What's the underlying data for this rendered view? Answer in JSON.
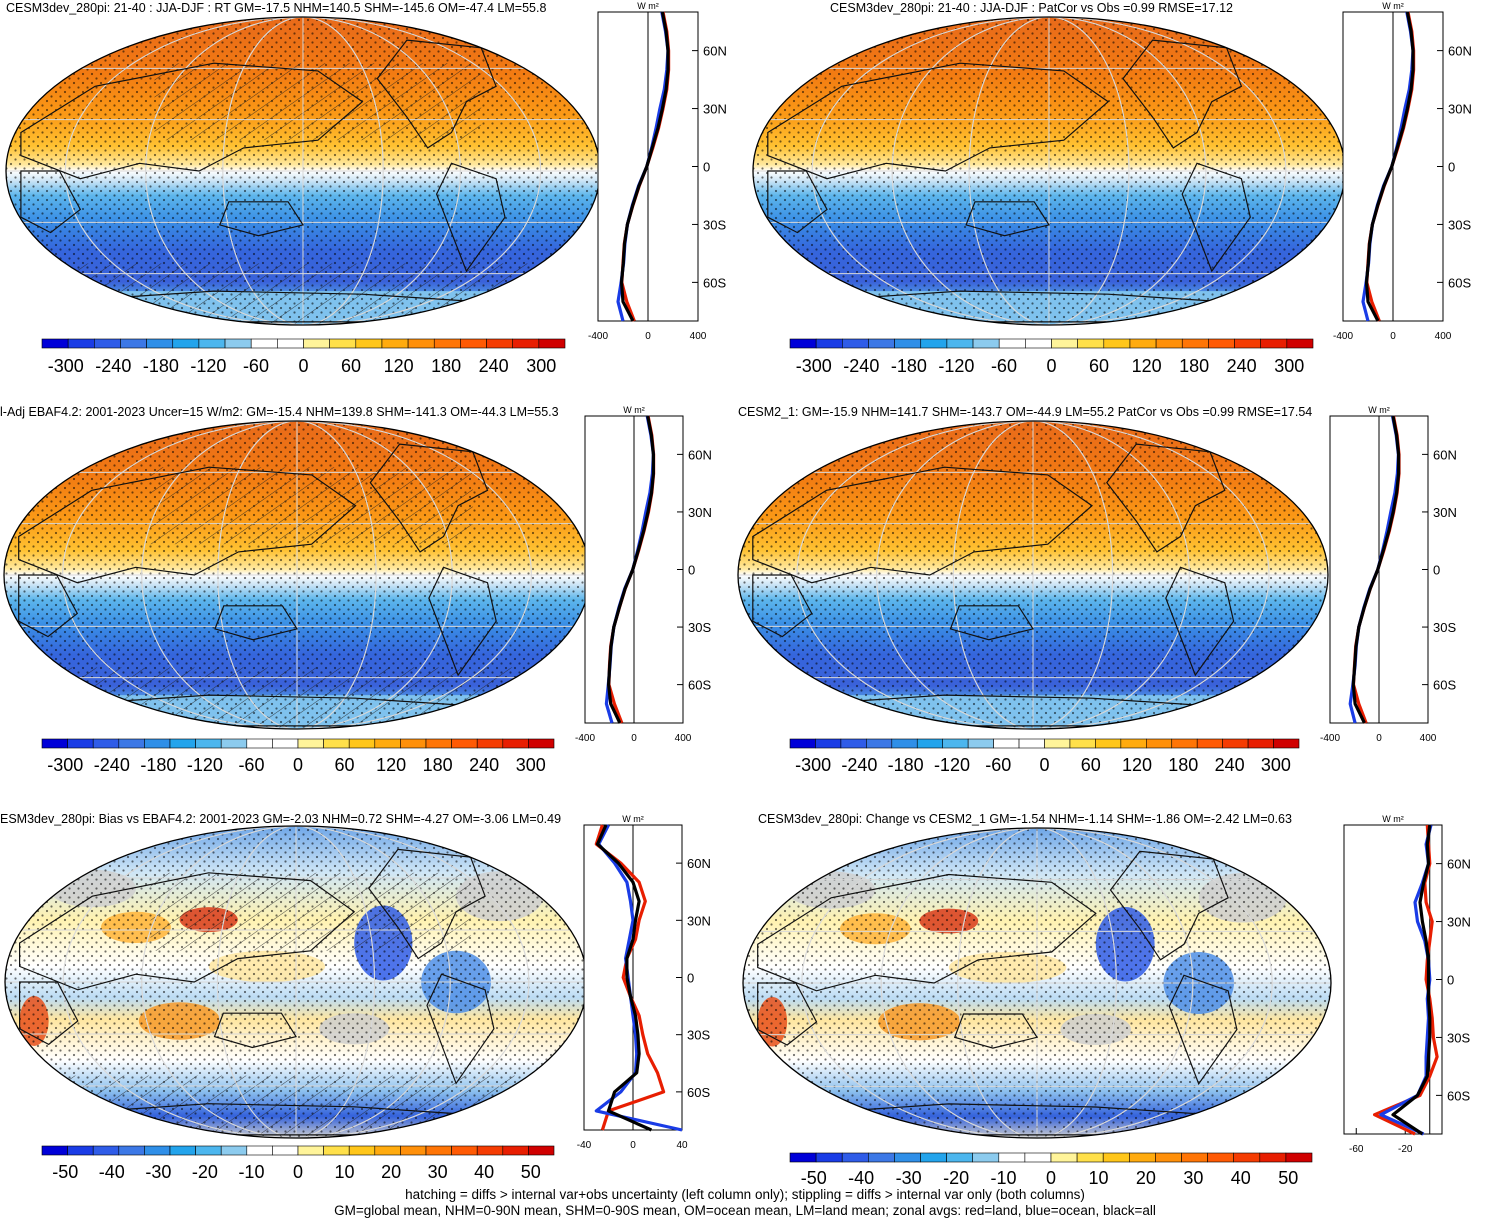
{
  "chart_data": [
    {
      "type": "heatmap",
      "title": "CESM3dev_280pi: 21-40 : JJA-DJF : RT GM=-17.5 NHM=140.5 SHM=-145.6 OM=-47.4 LM=55.8",
      "colorbar_ticks": [
        "-300",
        "-240",
        "-180",
        "-120",
        "-60",
        "0",
        "60",
        "120",
        "180",
        "240",
        "300"
      ],
      "colorbar_range": [
        -330,
        330
      ],
      "hatching": true,
      "zonal": {
        "unit": "W m²",
        "xticks": [
          "-400",
          "0",
          "400"
        ],
        "xlim": [
          -400,
          400
        ],
        "yticks": [
          "60N",
          "30N",
          "0",
          "30S",
          "60S"
        ],
        "lat": [
          80,
          70,
          60,
          50,
          40,
          30,
          20,
          10,
          0,
          -10,
          -20,
          -30,
          -40,
          -50,
          -60,
          -70,
          -80
        ],
        "series": [
          {
            "values": [
              120,
              150,
              165,
              165,
              150,
              120,
              85,
              40,
              -10,
              -70,
              -120,
              -165,
              -190,
              -200,
              -210,
              -170,
              -110
            ]
          },
          {
            "values": [
              110,
              140,
              160,
              150,
              130,
              95,
              65,
              30,
              -10,
              -75,
              -125,
              -165,
              -185,
              -195,
              -215,
              -240,
              -200
            ]
          },
          {
            "values": [
              115,
              145,
              160,
              160,
              145,
              115,
              80,
              35,
              -10,
              -72,
              -122,
              -165,
              -188,
              -198,
              -212,
              -200,
              -120
            ]
          }
        ]
      }
    },
    {
      "type": "heatmap",
      "title": "CESM3dev_280pi: 21-40 : JJA-DJF : PatCor vs Obs =0.99 RMSE=17.12",
      "colorbar_ticks": [
        "-300",
        "-240",
        "-180",
        "-120",
        "-60",
        "0",
        "60",
        "120",
        "180",
        "240",
        "300"
      ],
      "colorbar_range": [
        -330,
        330
      ],
      "hatching": false,
      "zonal": {
        "unit": "W m²",
        "xticks": [
          "-400",
          "0",
          "400"
        ],
        "xlim": [
          -400,
          400
        ],
        "yticks": [
          "60N",
          "30N",
          "0",
          "30S",
          "60S"
        ],
        "lat": [
          80,
          70,
          60,
          50,
          40,
          30,
          20,
          10,
          0,
          -10,
          -20,
          -30,
          -40,
          -50,
          -60,
          -70,
          -80
        ],
        "series": [
          {
            "values": [
              120,
              150,
              165,
              165,
              150,
              120,
              85,
              40,
              -10,
              -70,
              -120,
              -165,
              -190,
              -200,
              -210,
              -170,
              -110
            ]
          },
          {
            "values": [
              110,
              140,
              160,
              150,
              130,
              95,
              65,
              30,
              -10,
              -75,
              -125,
              -165,
              -185,
              -195,
              -215,
              -240,
              -200
            ]
          },
          {
            "values": [
              115,
              145,
              160,
              160,
              145,
              115,
              80,
              35,
              -10,
              -72,
              -122,
              -165,
              -188,
              -198,
              -212,
              -200,
              -120
            ]
          }
        ]
      }
    },
    {
      "type": "heatmap",
      "title": "l-Adj EBAF4.2: 2001-2023 Uncer=15 W/m2: GM=-15.4 NHM=139.8 SHM=-141.3 OM=-44.3 LM=55.3",
      "colorbar_ticks": [
        "-300",
        "-240",
        "-180",
        "-120",
        "-60",
        "0",
        "60",
        "120",
        "180",
        "240",
        "300"
      ],
      "colorbar_range": [
        -330,
        330
      ],
      "hatching": true,
      "zonal": {
        "unit": "W m²",
        "xticks": [
          "-400",
          "0",
          "400"
        ],
        "xlim": [
          -400,
          400
        ],
        "yticks": [
          "60N",
          "30N",
          "0",
          "30S",
          "60S"
        ],
        "lat": [
          80,
          70,
          60,
          50,
          40,
          30,
          20,
          10,
          0,
          -10,
          -20,
          -30,
          -40,
          -50,
          -60,
          -70,
          -80
        ],
        "series": [
          {
            "values": [
              115,
              145,
              160,
              160,
              145,
              118,
              82,
              38,
              -10,
              -72,
              -120,
              -165,
              -190,
              -200,
              -205,
              -160,
              -100
            ]
          },
          {
            "values": [
              108,
              138,
              158,
              150,
              130,
              96,
              66,
              30,
              -10,
              -76,
              -124,
              -165,
              -186,
              -196,
              -210,
              -225,
              -180
            ]
          },
          {
            "values": [
              112,
              142,
              158,
              158,
              143,
              114,
              78,
              35,
              -10,
              -73,
              -121,
              -165,
              -188,
              -198,
              -207,
              -190,
              -115
            ]
          }
        ]
      }
    },
    {
      "type": "heatmap",
      "title": "CESM2_1: GM=-15.9 NHM=141.7 SHM=-143.7 OM=-44.9 LM=55.2 PatCor vs Obs =0.99 RMSE=17.54",
      "colorbar_ticks": [
        "-300",
        "-240",
        "-180",
        "-120",
        "-60",
        "0",
        "60",
        "120",
        "180",
        "240",
        "300"
      ],
      "colorbar_range": [
        -330,
        330
      ],
      "hatching": false,
      "zonal": {
        "unit": "W m²",
        "xticks": [
          "-400",
          "0",
          "400"
        ],
        "xlim": [
          -400,
          400
        ],
        "yticks": [
          "60N",
          "30N",
          "0",
          "30S",
          "60S"
        ],
        "lat": [
          80,
          70,
          60,
          50,
          40,
          30,
          20,
          10,
          0,
          -10,
          -20,
          -30,
          -40,
          -50,
          -60,
          -70,
          -80
        ],
        "series": [
          {
            "values": [
              118,
              148,
              163,
              163,
              148,
              120,
              84,
              40,
              -10,
              -71,
              -121,
              -165,
              -190,
              -200,
              -208,
              -165,
              -105
            ]
          },
          {
            "values": [
              110,
              140,
              158,
              150,
              130,
              96,
              65,
              30,
              -10,
              -75,
              -124,
              -165,
              -185,
              -195,
              -213,
              -235,
              -195
            ]
          },
          {
            "values": [
              114,
              144,
              160,
              160,
              144,
              116,
              80,
              36,
              -10,
              -72,
              -122,
              -165,
              -188,
              -198,
              -210,
              -195,
              -118
            ]
          }
        ]
      }
    },
    {
      "type": "heatmap",
      "title": "ESM3dev_280pi: Bias vs EBAF4.2: 2001-2023 GM=-2.03 NHM=0.72 SHM=-4.27 OM=-3.06 LM=0.49",
      "colorbar_ticks": [
        "-50",
        "-40",
        "-30",
        "-20",
        "-10",
        "0",
        "10",
        "20",
        "30",
        "40",
        "50"
      ],
      "colorbar_range": [
        -55,
        55
      ],
      "hatching": true,
      "zonal": {
        "unit": "W m²",
        "xticks": [
          "-40",
          "0",
          "40"
        ],
        "xlim": [
          -40,
          40
        ],
        "yticks": [
          "60N",
          "30N",
          "0",
          "30S",
          "60S"
        ],
        "lat": [
          80,
          70,
          60,
          50,
          40,
          30,
          20,
          10,
          0,
          -10,
          -20,
          -30,
          -40,
          -50,
          -60,
          -70,
          -80
        ],
        "series": [
          {
            "values": [
              -25,
              -30,
              -10,
              5,
              10,
              5,
              2,
              -5,
              -8,
              -2,
              5,
              8,
              12,
              20,
              25,
              -20,
              -25
            ]
          },
          {
            "values": [
              -20,
              -28,
              -15,
              -5,
              -2,
              0,
              -3,
              -6,
              -4,
              -2,
              0,
              2,
              3,
              2,
              -10,
              -30,
              40
            ]
          },
          {
            "values": [
              -22,
              -29,
              -12,
              0,
              5,
              2,
              0,
              -5,
              -5,
              -2,
              2,
              4,
              5,
              3,
              -15,
              -20,
              15
            ]
          }
        ]
      }
    },
    {
      "type": "heatmap",
      "title": "CESM3dev_280pi: Change vs CESM2_1 GM=-1.54 NHM=-1.14 SHM=-1.86 OM=-2.42 LM=0.63",
      "colorbar_ticks": [
        "-50",
        "-40",
        "-30",
        "-20",
        "-10",
        "0",
        "10",
        "20",
        "30",
        "40",
        "50"
      ],
      "colorbar_range": [
        -55,
        55
      ],
      "hatching": false,
      "zonal": {
        "unit": "W m²",
        "xticks": [
          "-60",
          "-20"
        ],
        "xlim": [
          -70,
          10
        ],
        "yticks": [
          "60N",
          "30N",
          "0",
          "30S",
          "60S"
        ],
        "lat": [
          80,
          70,
          60,
          50,
          40,
          30,
          20,
          10,
          0,
          -10,
          -20,
          -30,
          -40,
          -50,
          -60,
          -70,
          -80
        ],
        "series": [
          {
            "values": [
              -2,
              -1,
              0,
              -4,
              -3,
              2,
              0,
              -2,
              -3,
              0,
              2,
              3,
              6,
              0,
              -8,
              -45,
              -12
            ]
          },
          {
            "values": [
              1,
              -3,
              -1,
              -6,
              -12,
              -10,
              -4,
              -1,
              0,
              -2,
              -1,
              -2,
              -3,
              -3,
              -10,
              -40,
              -5
            ]
          },
          {
            "values": [
              0,
              -2,
              -1,
              -5,
              -8,
              -6,
              -3,
              -1,
              -1,
              -1,
              0,
              0,
              -1,
              -2,
              -10,
              -30,
              -6
            ]
          }
        ]
      }
    }
  ],
  "footer": {
    "line1": "hatching = diffs > internal var+obs uncertainty (left column only); stippling = diffs > internal var only (both columns)",
    "line2": "GM=global mean, NHM=0-90N mean, SHM=0-90S mean, OM=ocean mean, LM=land mean; zonal avgs: red=land, blue=ocean, black=all"
  },
  "colors": {
    "colorbar_full": [
      "#0000d8",
      "#1a3ce6",
      "#2f5ce8",
      "#3c78e6",
      "#2f8fe8",
      "#23a4ec",
      "#4cb6ee",
      "#8ccbee",
      "#ffffff",
      "#ffffff",
      "#fff49a",
      "#ffe04a",
      "#ffc61a",
      "#ffab0f",
      "#ff900a",
      "#ff7506",
      "#ff5a04",
      "#f53c02",
      "#e81e01",
      "#d00000"
    ],
    "land_line": "#e81e01",
    "ocean_line": "#1a3ce6",
    "all_line": "#000000",
    "no_data": "#cfcfcf"
  }
}
